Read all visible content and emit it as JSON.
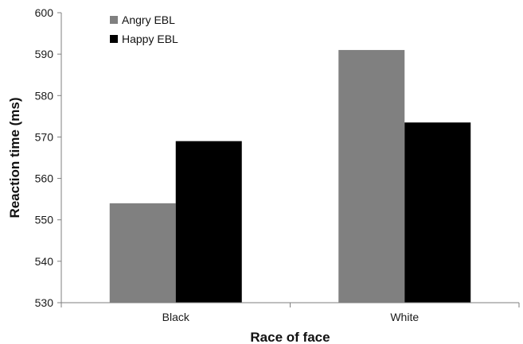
{
  "chart_data": {
    "type": "bar",
    "title": "",
    "xlabel": "Race of face",
    "ylabel": "Reaction time (ms)",
    "ylim": [
      530,
      600
    ],
    "yticks": [
      530,
      540,
      550,
      560,
      570,
      580,
      590,
      600
    ],
    "categories": [
      "Black",
      "White"
    ],
    "series": [
      {
        "name": "Angry EBL",
        "color": "#808080",
        "values": [
          554,
          591
        ]
      },
      {
        "name": "Happy EBL",
        "color": "#000000",
        "values": [
          569,
          573.5
        ]
      }
    ],
    "legend_position": "top-left",
    "grid": false
  }
}
